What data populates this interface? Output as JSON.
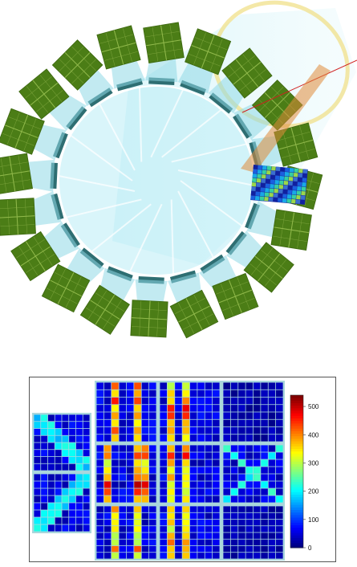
{
  "colors": {
    "module_face": "#4b7d16",
    "module_grid": "#7aa23a",
    "light_guide": "#8fd8e6",
    "ring_line": "#ffffff",
    "sensor_bar": "#2e6e72",
    "beam_cone": "#cdeff5",
    "cone_rim": "#f0e08a",
    "track": "#d02020",
    "frame_border": "#555555"
  },
  "colorbar": {
    "ticks": [
      "500",
      "400",
      "300",
      "200",
      "100",
      "0"
    ],
    "min": 0,
    "max": 540
  },
  "heatmap": {
    "panels": [
      {
        "name": "left-upper"
      },
      {
        "name": "left-lower"
      },
      {
        "name": "grid-r0c0"
      },
      {
        "name": "grid-r0c1"
      },
      {
        "name": "grid-r0c2"
      },
      {
        "name": "grid-r1c0"
      },
      {
        "name": "grid-r1c1"
      },
      {
        "name": "grid-r1c2"
      },
      {
        "name": "grid-r2c0"
      },
      {
        "name": "grid-r2c1"
      },
      {
        "name": "grid-r2c2"
      }
    ]
  }
}
